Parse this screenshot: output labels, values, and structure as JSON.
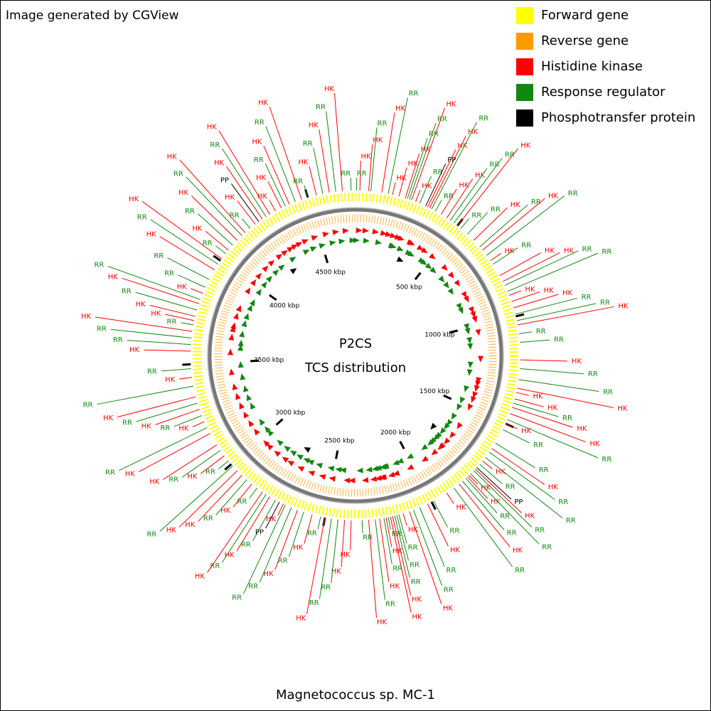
{
  "chart_data": {
    "type": "circular-genome-map",
    "title": "Magnetococcus sp. MC-1",
    "credit": "Image generated by CGView",
    "center_title": "P2CS",
    "center_subtitle": "TCS distribution",
    "xlim": [
      0,
      4720
    ],
    "xticks": [
      {
        "value": 500,
        "label": "500 kbp"
      },
      {
        "value": 1000,
        "label": "1000 kbp"
      },
      {
        "value": 1500,
        "label": "1500 kbp"
      },
      {
        "value": 2000,
        "label": "2000 kbp"
      },
      {
        "value": 2500,
        "label": "2500 kbp"
      },
      {
        "value": 3000,
        "label": "3000 kbp"
      },
      {
        "value": 3500,
        "label": "3500 kbp"
      },
      {
        "value": 4000,
        "label": "4000 kbp"
      },
      {
        "value": 4500,
        "label": "4500 kbp"
      }
    ],
    "gene_tracks": [
      {
        "name": "Forward gene",
        "color": "#ffff00"
      },
      {
        "name": "Reverse gene",
        "color": "#ff9900"
      }
    ],
    "series": [
      {
        "name": "Histidine kinase",
        "label": "HK",
        "color": "#ff0000",
        "values": [
          20,
          60,
          120,
          170,
          200,
          230,
          260,
          280,
          340,
          350,
          410,
          440,
          500,
          600,
          660,
          720,
          800,
          830,
          900,
          930,
          960,
          1040,
          1200,
          1330,
          1350,
          1380,
          1420,
          1450,
          1500,
          1630,
          1700,
          1750,
          1790,
          1800,
          1850,
          1920,
          2020,
          2110,
          2140,
          2190,
          2200,
          2220,
          2250,
          2300,
          2380,
          2410,
          2500,
          2560,
          2630,
          2700,
          2770,
          2810,
          2870,
          2930,
          2960,
          3050,
          3110,
          3170,
          3230,
          3290,
          3350,
          3440,
          3560,
          3650,
          3700,
          3720,
          3780,
          3830,
          3950,
          4010,
          4060,
          4120,
          4170,
          4230,
          4270,
          4310,
          4340,
          4370,
          4410,
          4470,
          4540,
          4600,
          4660
        ]
      },
      {
        "name": "Response regulator",
        "label": "RR",
        "color": "#118811",
        "values": [
          5,
          70,
          150,
          240,
          250,
          300,
          360,
          380,
          460,
          480,
          520,
          560,
          640,
          690,
          740,
          850,
          880,
          990,
          1020,
          1080,
          1120,
          1240,
          1290,
          1400,
          1480,
          1530,
          1600,
          1650,
          1680,
          1720,
          1760,
          1780,
          1810,
          1830,
          1880,
          1990,
          2060,
          2090,
          2160,
          2170,
          2180,
          2210,
          2230,
          2270,
          2330,
          2440,
          2470,
          2520,
          2600,
          2660,
          2690,
          2740,
          2790,
          2840,
          2900,
          2990,
          3020,
          3080,
          3200,
          3260,
          3320,
          3400,
          3480,
          3590,
          3620,
          3680,
          3750,
          3800,
          3860,
          3900,
          3980,
          4040,
          4090,
          4150,
          4200,
          4290,
          4390,
          4440,
          4500,
          4570,
          4630,
          4700
        ]
      },
      {
        "name": "Phosphotransfer protein",
        "label": "PP",
        "color": "#000000",
        "values": [
          330,
          1740,
          2720,
          4250
        ]
      }
    ]
  }
}
